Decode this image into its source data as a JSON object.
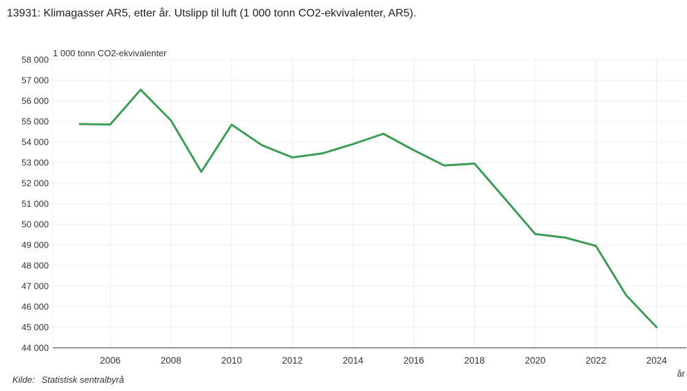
{
  "title": "13931: Klimagasser AR5, etter år. Utslipp til luft (1 000 tonn CO2-ekvivalenter, AR5).",
  "source": {
    "label": "Kilde:",
    "name": "Statistisk sentralbyrå"
  },
  "colors": {
    "line": "#3c9b55",
    "grid": "#ececec",
    "axis": "#2b2b2b",
    "tick_text": "#333333",
    "title_text": "#212121"
  },
  "chart_data": {
    "type": "line",
    "title": "13931: Klimagasser AR5, etter år. Utslipp til luft (1 000 tonn CO2-ekvivalenter, AR5).",
    "ylabel": "1 000 tonn CO2-ekvivalenter",
    "xlabel": "år",
    "x": [
      2005,
      2006,
      2007,
      2008,
      2009,
      2010,
      2011,
      2012,
      2013,
      2014,
      2015,
      2016,
      2017,
      2018,
      2019,
      2020,
      2021,
      2022,
      2023,
      2024
    ],
    "series": [
      {
        "name": "Utslipp til luft (1 000 tonn CO2-ekvivalenter, AR5)",
        "color": "#3c9b55",
        "values": [
          54870,
          54850,
          56540,
          55050,
          52550,
          54840,
          53840,
          53250,
          53450,
          53900,
          54400,
          53600,
          52860,
          52950,
          51250,
          49530,
          49350,
          48950,
          46550,
          45000
        ]
      }
    ],
    "ylim": [
      44000,
      58000
    ],
    "ytick_step": 1000,
    "xticks": [
      2006,
      2008,
      2010,
      2012,
      2014,
      2016,
      2018,
      2020,
      2022,
      2024
    ],
    "grid": true,
    "legend_position": "none"
  }
}
